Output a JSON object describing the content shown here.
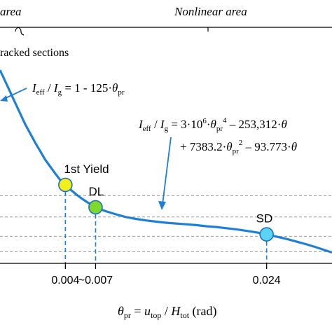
{
  "header": {
    "elastic_area_label": "area",
    "nonlinear_area_label": "Nonlinear area",
    "cracked_sections_label": "racked sections"
  },
  "equations": {
    "eq1": {
      "lhs_i": "I",
      "lhs_eff": "eff",
      "slash": " / ",
      "lhs_ig": "I",
      "lhs_g": "g",
      "rhs": " = 1 - 125·",
      "theta": "θ",
      "theta_sub": "pr"
    },
    "eq2": {
      "line1_prefix": " = 3·10",
      "line1_exp": "6",
      "line1_mid": "·",
      "line1_sup": "4",
      "line1_rest": " – 253,312·",
      "line2_start": "+ 7383.2·",
      "line2_sup": "2",
      "line2_rest": " – 93.773·"
    }
  },
  "x_axis": {
    "label_theta": "θ",
    "label_theta_sub": "pr",
    "label_eq": " = ",
    "label_u": "u",
    "label_u_sub": "top",
    "label_slash": " / ",
    "label_h": "H",
    "label_h_sub": "tot",
    "label_unit": " (rad)"
  },
  "colors": {
    "curve": "#1e7fd6",
    "axis": "#000000",
    "grid": "#9a9a9a",
    "yield": "#f2ef1a",
    "dl": "#7fd92a",
    "sd": "#5cd3f2",
    "marker_stroke": "#1e6fc0"
  },
  "chart_data": {
    "type": "line",
    "title": "",
    "xlabel": "θpr = utop / Htot (rad)",
    "ylabel": "",
    "xlim": [
      -0.0025,
      0.0305
    ],
    "ylim": [
      0.08,
      0.58
    ],
    "x_ticks": [
      {
        "value": 0.004,
        "label": "0.004"
      },
      {
        "value": 0.007,
        "label": "~0.007"
      },
      {
        "value": 0.024,
        "label": "0.024"
      }
    ],
    "gridlines_y": [
      0.255,
      0.2,
      0.15,
      0.11
    ],
    "series": [
      {
        "x": [
          -0.0025,
          -0.002,
          -0.0015,
          -0.001,
          -0.0005,
          0.0,
          0.0005,
          0.001,
          0.0015,
          0.002,
          0.0025,
          0.003,
          0.0035,
          0.004,
          0.0045,
          0.005,
          0.0055,
          0.006,
          0.0065,
          0.007,
          0.008,
          0.009,
          0.01,
          0.011,
          0.012,
          0.013,
          0.014,
          0.015,
          0.016,
          0.017,
          0.018,
          0.019,
          0.02,
          0.021,
          0.022,
          0.023,
          0.024,
          0.025,
          0.026,
          0.027,
          0.028,
          0.029,
          0.0305
        ],
        "values": [
          0.58,
          0.552,
          0.524,
          0.496,
          0.468,
          0.44,
          0.416,
          0.392,
          0.37,
          0.348,
          0.33,
          0.312,
          0.295,
          0.283,
          0.271,
          0.26,
          0.25,
          0.241,
          0.233,
          0.225,
          0.215,
          0.207,
          0.2,
          0.195,
          0.191,
          0.188,
          0.185,
          0.183,
          0.181,
          0.179,
          0.176,
          0.174,
          0.171,
          0.168,
          0.164,
          0.16,
          0.155,
          0.149,
          0.143,
          0.136,
          0.129,
          0.121,
          0.108
        ]
      }
    ],
    "points": [
      {
        "label": "1st Yield",
        "x": 0.004,
        "y": 0.283
      },
      {
        "label": "DL",
        "x": 0.007,
        "y": 0.225
      },
      {
        "label": "SD",
        "x": 0.024,
        "y": 0.155
      }
    ]
  }
}
